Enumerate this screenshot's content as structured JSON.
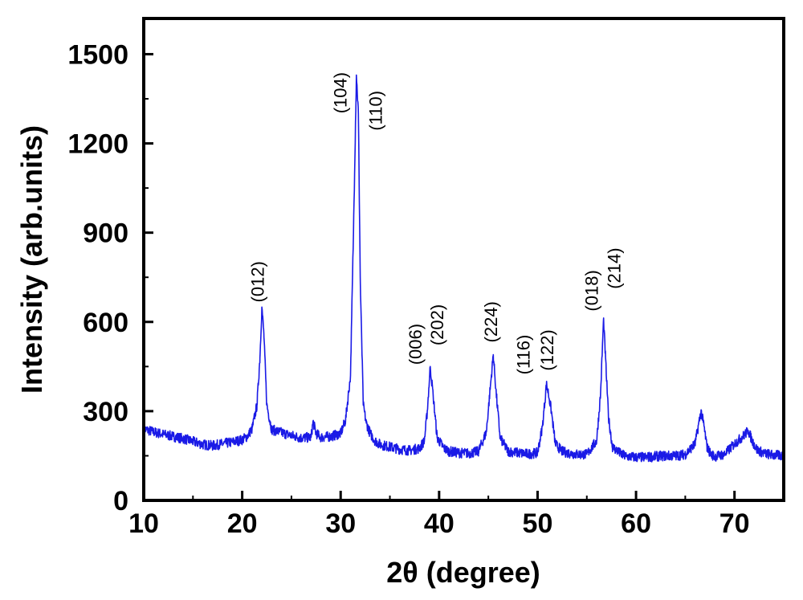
{
  "chart_data": {
    "type": "line",
    "title": "",
    "xlabel": "2θ (degree)",
    "ylabel": "Intensity (arb.units)",
    "xlim": [
      10,
      75
    ],
    "ylim": [
      0,
      1620
    ],
    "x_ticks": [
      10,
      20,
      30,
      40,
      50,
      60,
      70
    ],
    "y_ticks": [
      0,
      300,
      600,
      900,
      1200,
      1500
    ],
    "grid": false,
    "legend": "none",
    "series": [
      {
        "color": "#1a1ae6",
        "x": [
          10,
          11,
          12,
          13,
          14,
          15,
          16,
          17,
          18,
          19,
          20,
          20.5,
          21,
          21.5,
          21.8,
          22.0,
          22.2,
          22.5,
          23,
          24,
          25,
          26,
          27,
          27.2,
          27.5,
          28,
          29,
          30,
          30.5,
          31.0,
          31.3,
          31.6,
          31.8,
          32.0,
          32.3,
          32.6,
          33,
          33.5,
          34,
          35,
          36,
          37,
          38,
          38.5,
          38.8,
          39.1,
          39.4,
          39.8,
          40.5,
          41,
          42,
          43,
          44,
          44.8,
          45.2,
          45.5,
          45.8,
          46.2,
          47,
          48,
          49,
          50,
          50.5,
          50.9,
          51.1,
          51.4,
          51.8,
          52.5,
          53,
          54,
          55,
          56,
          56.4,
          56.7,
          56.9,
          57.2,
          57.6,
          58.5,
          59,
          60,
          61,
          62,
          63,
          64,
          65,
          66,
          66.6,
          66.9,
          67.2,
          67.6,
          68,
          69,
          70,
          71,
          71.4,
          71.8,
          72.3,
          73,
          74,
          75
        ],
        "y": [
          240,
          230,
          222,
          215,
          208,
          198,
          188,
          184,
          190,
          196,
          204,
          215,
          240,
          320,
          480,
          650,
          560,
          320,
          238,
          228,
          218,
          210,
          212,
          265,
          225,
          212,
          215,
          225,
          270,
          420,
          900,
          1430,
          1300,
          720,
          320,
          260,
          225,
          200,
          188,
          180,
          172,
          168,
          175,
          200,
          300,
          450,
          350,
          210,
          175,
          165,
          160,
          158,
          165,
          230,
          380,
          490,
          360,
          210,
          165,
          160,
          156,
          160,
          250,
          390,
          360,
          300,
          190,
          165,
          160,
          155,
          155,
          200,
          360,
          610,
          480,
          280,
          180,
          155,
          148,
          145,
          145,
          148,
          150,
          150,
          155,
          190,
          300,
          250,
          180,
          155,
          148,
          155,
          190,
          220,
          235,
          200,
          170,
          158,
          152,
          150
        ]
      }
    ],
    "annotations": [
      {
        "text": "(012)",
        "x": 22.2,
        "y": 735
      },
      {
        "text": "(104)",
        "x": 30.6,
        "y": 1370
      },
      {
        "text": "(110)",
        "x": 34.2,
        "y": 1310
      },
      {
        "text": "(006)",
        "x": 38.2,
        "y": 525
      },
      {
        "text": "(202)",
        "x": 40.4,
        "y": 590
      },
      {
        "text": "(224)",
        "x": 45.9,
        "y": 600
      },
      {
        "text": "(116)",
        "x": 49.2,
        "y": 490
      },
      {
        "text": "(122)",
        "x": 51.6,
        "y": 505
      },
      {
        "text": "(018)",
        "x": 56.1,
        "y": 705
      },
      {
        "text": "(214)",
        "x": 58.4,
        "y": 780
      }
    ]
  }
}
